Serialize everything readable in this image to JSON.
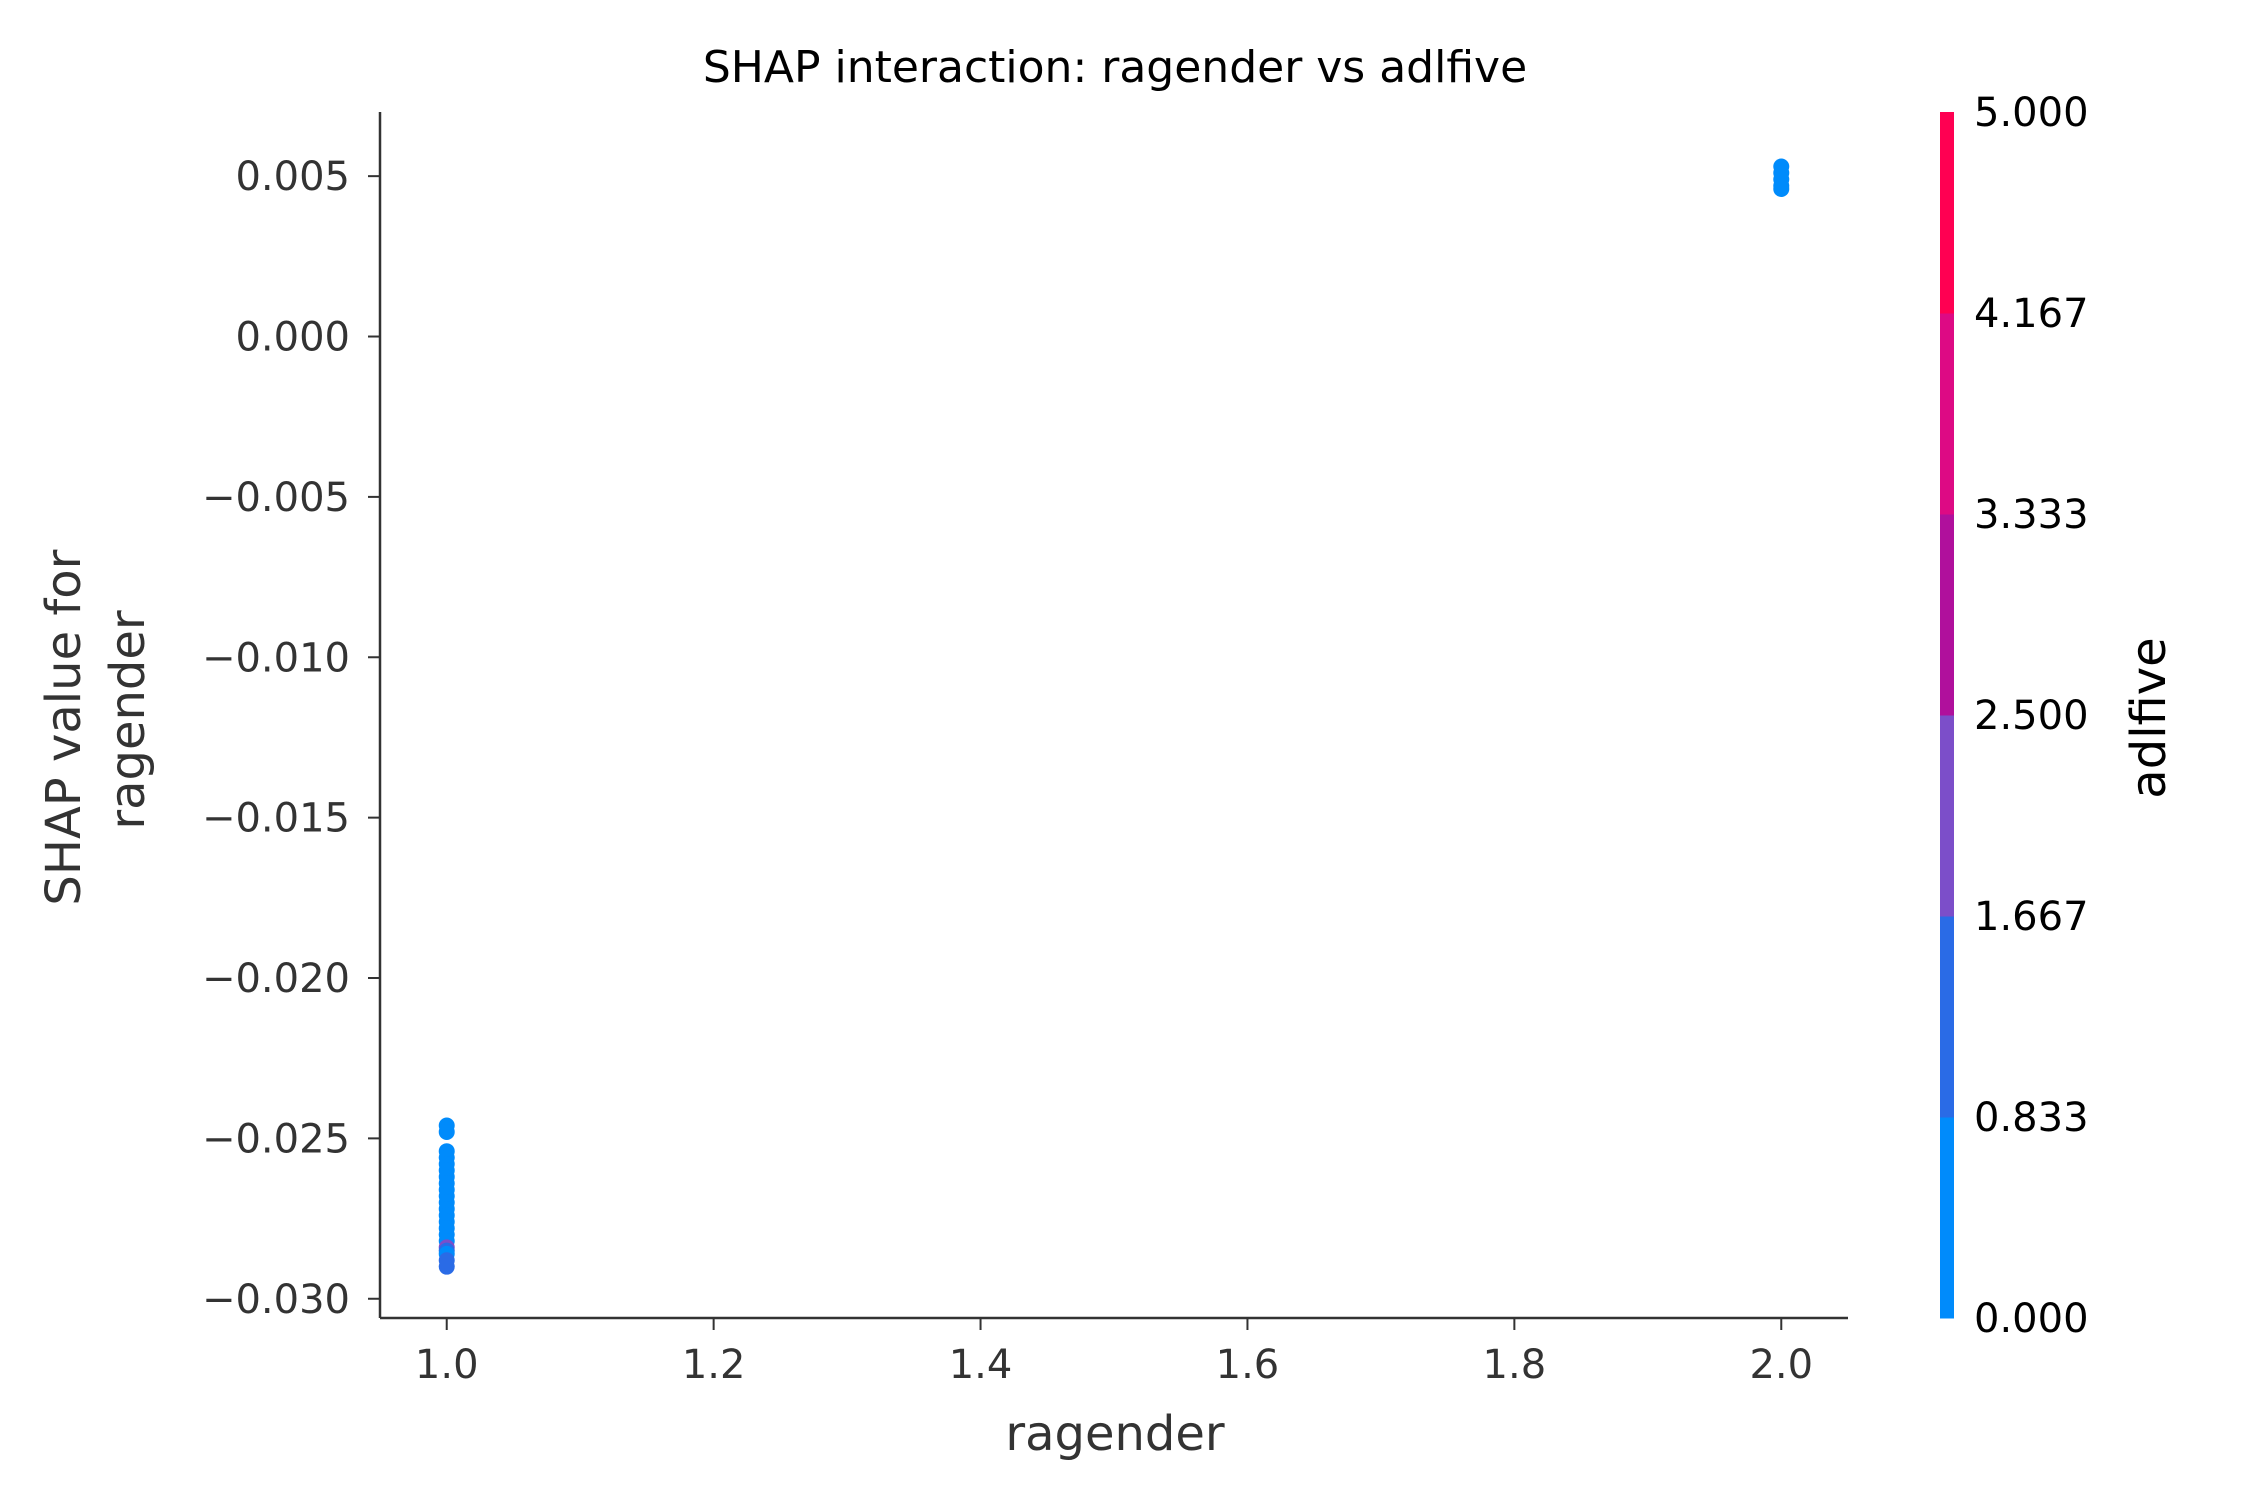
{
  "chart_data": {
    "type": "scatter",
    "title": "SHAP interaction: ragender vs adlfive",
    "xlabel": "ragender",
    "ylabel_lines": [
      "SHAP value for",
      "ragender"
    ],
    "xlim": [
      0.95,
      2.05
    ],
    "ylim": [
      -0.0306,
      0.007
    ],
    "x_ticks": [
      1.0,
      1.2,
      1.4,
      1.6,
      1.8,
      2.0
    ],
    "x_tick_labels": [
      "1.0",
      "1.2",
      "1.4",
      "1.6",
      "1.8",
      "2.0"
    ],
    "y_ticks": [
      0.005,
      0.0,
      -0.005,
      -0.01,
      -0.015,
      -0.02,
      -0.025,
      -0.03
    ],
    "y_tick_labels": [
      "0.005",
      "0.000",
      "−0.005",
      "−0.010",
      "−0.015",
      "−0.020",
      "−0.025",
      "−0.030"
    ],
    "grid": false,
    "colorbar": {
      "label": "adlfive",
      "range": [
        0.0,
        5.0
      ],
      "tick_values": [
        0.0,
        0.833,
        1.667,
        2.5,
        3.333,
        4.167,
        5.0
      ],
      "tick_labels": [
        "0.000",
        "0.833",
        "1.667",
        "2.500",
        "3.333",
        "4.167",
        "5.000"
      ],
      "colors": [
        "#008bfb",
        "#2a6be6",
        "#7c4ec9",
        "#b0109c",
        "#dd0a84",
        "#ff0052"
      ]
    },
    "points": [
      {
        "x": 2.0,
        "y": 0.0053,
        "c": 0
      },
      {
        "x": 2.0,
        "y": 0.0051,
        "c": 0
      },
      {
        "x": 2.0,
        "y": 0.0049,
        "c": 0
      },
      {
        "x": 2.0,
        "y": 0.0047,
        "c": 0
      },
      {
        "x": 2.0,
        "y": 0.0046,
        "c": 0
      },
      {
        "x": 1.0,
        "y": -0.0246,
        "c": 0
      },
      {
        "x": 1.0,
        "y": -0.0248,
        "c": 0
      },
      {
        "x": 1.0,
        "y": -0.0254,
        "c": 0
      },
      {
        "x": 1.0,
        "y": -0.0256,
        "c": 0
      },
      {
        "x": 1.0,
        "y": -0.0258,
        "c": 0
      },
      {
        "x": 1.0,
        "y": -0.026,
        "c": 0
      },
      {
        "x": 1.0,
        "y": -0.0262,
        "c": 0
      },
      {
        "x": 1.0,
        "y": -0.0264,
        "c": 0
      },
      {
        "x": 1.0,
        "y": -0.0266,
        "c": 0
      },
      {
        "x": 1.0,
        "y": -0.0268,
        "c": 0
      },
      {
        "x": 1.0,
        "y": -0.027,
        "c": 0
      },
      {
        "x": 1.0,
        "y": -0.0272,
        "c": 0
      },
      {
        "x": 1.0,
        "y": -0.0274,
        "c": 0
      },
      {
        "x": 1.0,
        "y": -0.0276,
        "c": 0
      },
      {
        "x": 1.0,
        "y": -0.0278,
        "c": 0
      },
      {
        "x": 1.0,
        "y": -0.028,
        "c": 0
      },
      {
        "x": 1.0,
        "y": -0.0282,
        "c": 0
      },
      {
        "x": 1.0,
        "y": -0.0284,
        "c": 2
      },
      {
        "x": 1.0,
        "y": -0.0285,
        "c": 1
      },
      {
        "x": 1.0,
        "y": -0.0286,
        "c": 0
      },
      {
        "x": 1.0,
        "y": -0.0288,
        "c": 1
      },
      {
        "x": 1.0,
        "y": -0.029,
        "c": 1
      }
    ]
  }
}
